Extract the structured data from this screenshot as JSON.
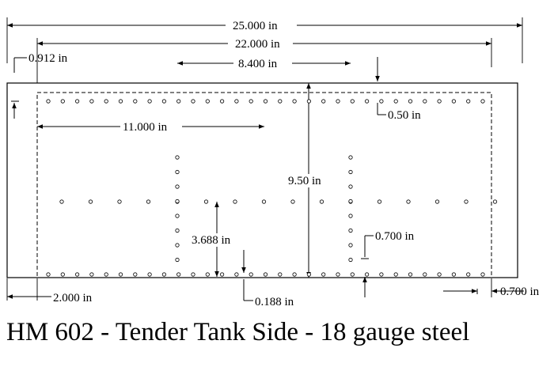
{
  "caption": "HM 602 - Tender Tank Side - 18 gauge steel",
  "dimensions": {
    "overall_width": "25.000 in",
    "rivet_area_width": "22.000 in",
    "center_span": "8.400 in",
    "top_offset": "0.912 in",
    "half_width": "11.000 in",
    "right_inset": "0.50 in",
    "height": "9.50 in",
    "mid_row_height": "3.688 in",
    "row_spacing": "0.700 in",
    "left_margin": "2.000 in",
    "bottom_inset": "0.188 in",
    "right_margin": "0.700 in"
  },
  "colors": {
    "line": "#000000",
    "hole": "#ffffff"
  }
}
